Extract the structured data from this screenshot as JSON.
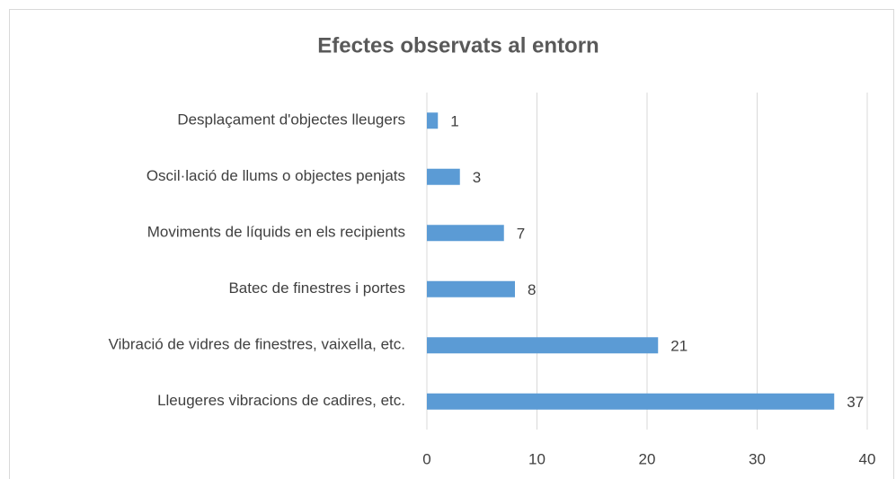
{
  "chart_data": {
    "type": "bar",
    "orientation": "horizontal",
    "title": "Efectes observats al entorn",
    "categories": [
      "Desplaçament d'objectes lleugers",
      "Oscil·lació de llums o objectes penjats",
      "Moviments de líquids en els recipients",
      "Batec de finestres i portes",
      "Vibració de vidres de finestres, vaixella, etc.",
      "Lleugeres vibracions de cadires, etc."
    ],
    "values": [
      1,
      3,
      7,
      8,
      21,
      37
    ],
    "color": "#5b9bd5",
    "xlim": [
      0,
      40
    ],
    "xticks": [
      0,
      10,
      20,
      30,
      40
    ],
    "grid": true
  }
}
